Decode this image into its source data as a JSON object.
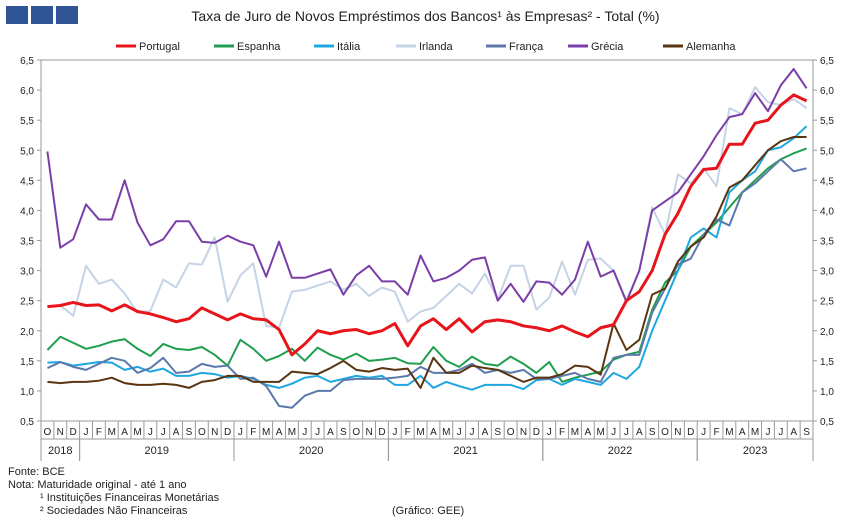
{
  "header": {
    "title": "Taxa de Juro de Novos Empréstimos dos Bancos¹ às Empresas² - Total (%)"
  },
  "footer": {
    "source": "Fonte: BCE",
    "note": "Nota: Maturidade original - até 1 ano",
    "fn1": "¹ Instituições Financeiras Monetárias",
    "fn2": "² Sociedades Não Financeiras",
    "credit": "(Gráfico: GEE)"
  },
  "chart_data": {
    "type": "line",
    "x_month_labels": [
      "O",
      "N",
      "D",
      "J",
      "F",
      "M",
      "A",
      "M",
      "J",
      "J",
      "A",
      "S",
      "O",
      "N",
      "D",
      "J",
      "F",
      "M",
      "A",
      "M",
      "J",
      "J",
      "A",
      "S",
      "O",
      "N",
      "D",
      "J",
      "F",
      "M",
      "A",
      "M",
      "J",
      "J",
      "A",
      "S",
      "O",
      "N",
      "D",
      "J",
      "F",
      "M",
      "A",
      "M",
      "J",
      "J",
      "A",
      "S",
      "O",
      "N",
      "D",
      "J",
      "F",
      "M",
      "A",
      "M",
      "J",
      "J",
      "A",
      "S"
    ],
    "x_year_labels": [
      {
        "label": "2018",
        "start": 0,
        "end": 2
      },
      {
        "label": "2019",
        "start": 3,
        "end": 14
      },
      {
        "label": "2020",
        "start": 15,
        "end": 26
      },
      {
        "label": "2021",
        "start": 27,
        "end": 38
      },
      {
        "label": "2022",
        "start": 39,
        "end": 50
      },
      {
        "label": "2023",
        "start": 51,
        "end": 59
      }
    ],
    "y_ticks": [
      "0,5",
      "1,0",
      "1,5",
      "2,0",
      "2,5",
      "3,0",
      "3,5",
      "4,0",
      "4,5",
      "5,0",
      "5,5",
      "6,0",
      "6,5"
    ],
    "ylim": [
      0.5,
      6.5
    ],
    "legend_position": "top",
    "series": [
      {
        "name": "Portugal",
        "color": "#e8141b",
        "width": 3,
        "values": [
          2.4,
          2.42,
          2.47,
          2.42,
          2.43,
          2.33,
          2.43,
          2.32,
          2.28,
          2.22,
          2.15,
          2.2,
          2.38,
          2.28,
          2.18,
          2.28,
          2.2,
          2.18,
          2.02,
          1.6,
          1.78,
          2.0,
          1.95,
          2.0,
          2.02,
          1.95,
          2.0,
          2.12,
          1.75,
          2.08,
          2.2,
          2.02,
          2.2,
          1.98,
          2.15,
          2.18,
          2.15,
          2.08,
          2.05,
          2.0,
          2.08,
          1.98,
          1.9,
          2.05,
          2.1,
          2.5,
          2.65,
          3.0,
          3.6,
          3.95,
          4.4,
          4.68,
          4.7,
          5.1,
          5.1,
          5.45,
          5.5,
          5.75,
          5.92,
          5.82
        ]
      },
      {
        "name": "Espanha",
        "color": "#1f9e4e",
        "width": 2,
        "values": [
          1.68,
          1.9,
          1.8,
          1.7,
          1.75,
          1.82,
          1.86,
          1.7,
          1.58,
          1.78,
          1.7,
          1.68,
          1.73,
          1.6,
          1.42,
          1.85,
          1.7,
          1.5,
          1.58,
          1.7,
          1.5,
          1.72,
          1.6,
          1.52,
          1.62,
          1.5,
          1.52,
          1.55,
          1.46,
          1.45,
          1.73,
          1.5,
          1.4,
          1.57,
          1.45,
          1.42,
          1.57,
          1.45,
          1.3,
          1.48,
          1.15,
          1.22,
          1.27,
          1.32,
          1.52,
          1.6,
          1.65,
          2.35,
          2.8,
          3.0,
          3.4,
          3.6,
          3.8,
          4.05,
          4.3,
          4.5,
          4.7,
          4.85,
          4.95,
          5.03
        ]
      },
      {
        "name": "Itália",
        "color": "#1ea7e1",
        "width": 2,
        "values": [
          1.47,
          1.48,
          1.42,
          1.45,
          1.48,
          1.47,
          1.35,
          1.4,
          1.32,
          1.37,
          1.25,
          1.25,
          1.3,
          1.28,
          1.22,
          1.25,
          1.2,
          1.1,
          1.05,
          1.12,
          1.22,
          1.25,
          1.15,
          1.2,
          1.25,
          1.22,
          1.25,
          1.1,
          1.1,
          1.25,
          1.05,
          1.15,
          1.08,
          1.02,
          1.1,
          1.1,
          1.1,
          1.03,
          1.18,
          1.2,
          1.1,
          1.2,
          1.15,
          1.1,
          1.3,
          1.2,
          1.4,
          2.0,
          2.5,
          3.0,
          3.55,
          3.7,
          3.55,
          4.3,
          4.5,
          4.65,
          5.0,
          5.05,
          5.2,
          5.4
        ]
      },
      {
        "name": "Irlanda",
        "color": "#c5d3e6",
        "width": 2,
        "values": [
          2.4,
          2.42,
          2.25,
          3.08,
          2.78,
          2.85,
          2.62,
          2.3,
          2.33,
          2.85,
          2.72,
          3.12,
          3.1,
          3.55,
          2.48,
          2.92,
          3.12,
          2.08,
          2.05,
          2.65,
          2.68,
          2.75,
          2.82,
          2.68,
          2.78,
          2.58,
          2.72,
          2.65,
          2.15,
          2.32,
          2.38,
          2.58,
          2.78,
          2.62,
          2.95,
          2.52,
          3.08,
          3.08,
          2.35,
          2.55,
          3.15,
          2.6,
          3.18,
          3.2,
          3.0,
          2.5,
          3.0,
          4.05,
          3.6,
          4.6,
          4.45,
          4.7,
          4.4,
          5.7,
          5.6,
          6.05,
          5.8,
          5.75,
          5.85,
          5.7
        ]
      },
      {
        "name": "França",
        "color": "#5b79aa",
        "width": 2,
        "values": [
          1.38,
          1.48,
          1.4,
          1.35,
          1.45,
          1.55,
          1.5,
          1.3,
          1.38,
          1.55,
          1.3,
          1.32,
          1.45,
          1.4,
          1.42,
          1.2,
          1.22,
          1.08,
          0.75,
          0.72,
          0.92,
          1.0,
          1.0,
          1.18,
          1.2,
          1.2,
          1.2,
          1.22,
          1.25,
          1.4,
          1.3,
          1.3,
          1.35,
          1.45,
          1.3,
          1.35,
          1.3,
          1.35,
          1.2,
          1.2,
          1.25,
          1.3,
          1.2,
          1.15,
          1.55,
          1.6,
          1.6,
          2.3,
          2.7,
          3.1,
          3.2,
          3.6,
          3.85,
          3.75,
          4.3,
          4.45,
          4.65,
          4.85,
          4.65,
          4.7
        ]
      },
      {
        "name": "Grécia",
        "color": "#7b3ea8",
        "width": 2,
        "values": [
          4.98,
          3.38,
          3.52,
          4.1,
          3.85,
          3.85,
          4.5,
          3.8,
          3.42,
          3.52,
          3.82,
          3.82,
          3.48,
          3.46,
          3.58,
          3.48,
          3.42,
          2.9,
          3.48,
          2.88,
          2.88,
          2.95,
          3.02,
          2.6,
          2.92,
          3.08,
          2.82,
          2.82,
          2.6,
          3.25,
          2.82,
          2.88,
          3.0,
          3.18,
          3.22,
          2.5,
          2.78,
          2.48,
          2.82,
          2.8,
          2.6,
          2.85,
          3.48,
          2.9,
          3.0,
          2.48,
          3.0,
          4.0,
          4.15,
          4.3,
          4.6,
          4.9,
          5.25,
          5.55,
          5.6,
          5.95,
          5.65,
          6.08,
          6.35,
          6.03
        ]
      },
      {
        "name": "Alemanha",
        "color": "#5a3510",
        "width": 2,
        "values": [
          1.15,
          1.13,
          1.15,
          1.15,
          1.17,
          1.22,
          1.13,
          1.1,
          1.1,
          1.12,
          1.1,
          1.05,
          1.15,
          1.18,
          1.25,
          1.25,
          1.15,
          1.15,
          1.15,
          1.32,
          1.3,
          1.28,
          1.38,
          1.5,
          1.35,
          1.32,
          1.38,
          1.35,
          1.37,
          1.05,
          1.55,
          1.3,
          1.3,
          1.42,
          1.38,
          1.35,
          1.25,
          1.15,
          1.22,
          1.22,
          1.28,
          1.42,
          1.4,
          1.27,
          2.12,
          1.68,
          1.85,
          2.6,
          2.7,
          3.15,
          3.4,
          3.55,
          3.9,
          4.38,
          4.5,
          4.75,
          5.0,
          5.15,
          5.22,
          5.22
        ]
      }
    ]
  }
}
